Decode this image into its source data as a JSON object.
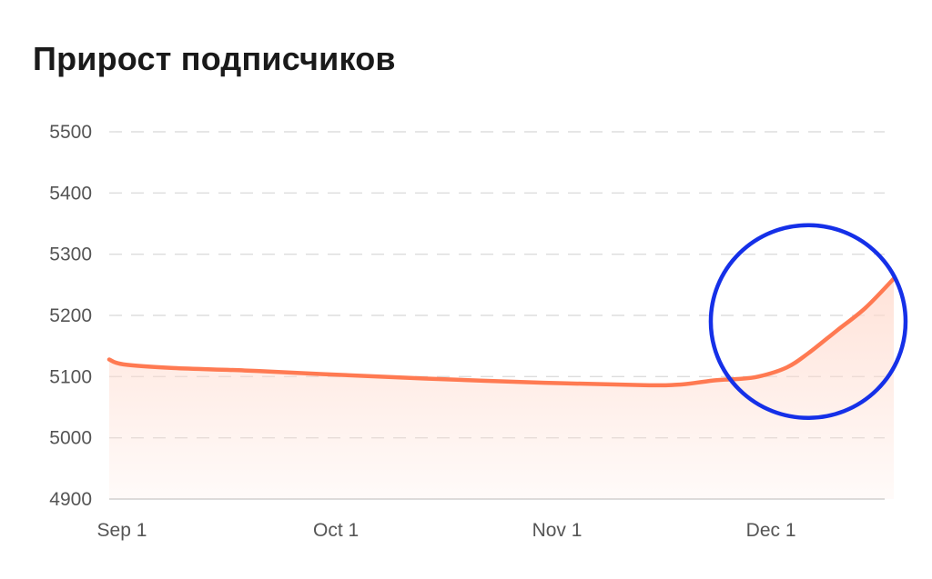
{
  "title": "Прирост подписчиков",
  "colors": {
    "line": "#ff7a52",
    "fill": "#ffd9cc",
    "grid": "#dddddd",
    "highlight": "#1530e8"
  },
  "chart_data": {
    "type": "area",
    "title": "Прирост подписчиков",
    "xlabel": "",
    "ylabel": "",
    "grid": true,
    "ylim": [
      4900,
      5500
    ],
    "yticks": [
      4900,
      5000,
      5100,
      5200,
      5300,
      5400,
      5500
    ],
    "xticks": [
      "Sep 1",
      "Oct 1",
      "Nov 1",
      "Dec 1"
    ],
    "xlim": [
      "2023-09-01",
      "2023-12-20"
    ],
    "series": [
      {
        "points": [
          [
            "2023-09-01",
            5128
          ],
          [
            "2023-09-03",
            5120
          ],
          [
            "2023-09-10",
            5114
          ],
          [
            "2023-09-20",
            5110
          ],
          [
            "2023-10-01",
            5104
          ],
          [
            "2023-10-15",
            5097
          ],
          [
            "2023-11-01",
            5090
          ],
          [
            "2023-11-15",
            5086
          ],
          [
            "2023-11-20",
            5087
          ],
          [
            "2023-11-25",
            5094
          ],
          [
            "2023-11-28",
            5096
          ],
          [
            "2023-12-01",
            5100
          ],
          [
            "2023-12-05",
            5115
          ],
          [
            "2023-12-08",
            5138
          ],
          [
            "2023-12-12",
            5175
          ],
          [
            "2023-12-16",
            5212
          ],
          [
            "2023-12-20",
            5260
          ]
        ]
      }
    ],
    "annotations": [
      {
        "type": "circle",
        "center": [
          "2023-12-08",
          5190
        ],
        "color": "#1530e8"
      }
    ]
  }
}
